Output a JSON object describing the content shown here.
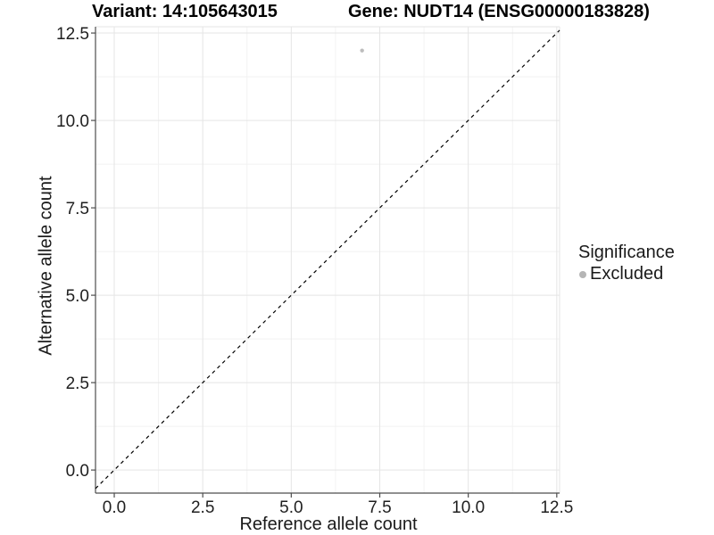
{
  "chart_data": {
    "type": "scatter",
    "title_left": "Variant: 14:105643015",
    "title_right": "Gene: NUDT14 (ENSG00000183828)",
    "xlabel": "Reference allele count",
    "ylabel": "Alternative allele count",
    "x_ticks": [
      "0.0",
      "2.5",
      "5.0",
      "7.5",
      "10.0",
      "12.5"
    ],
    "x_tick_values": [
      0,
      2.5,
      5,
      7.5,
      10,
      12.5
    ],
    "y_ticks": [
      "0.0",
      "2.5",
      "5.0",
      "7.5",
      "10.0",
      "12.5"
    ],
    "y_tick_values": [
      0,
      2.5,
      5,
      7.5,
      10,
      12.5
    ],
    "xlim": [
      -0.53,
      12.58
    ],
    "ylim": [
      -0.66,
      12.68
    ],
    "grid": true,
    "series": [
      {
        "name": "Excluded",
        "color": "#bdbdbd",
        "points": [
          {
            "x": 7,
            "y": 12
          }
        ]
      }
    ],
    "reference_line": {
      "slope": 1,
      "intercept": 0,
      "style": "dashed",
      "color": "#000000"
    },
    "legend": {
      "title": "Significance",
      "position": "right",
      "entries": [
        {
          "label": "Excluded",
          "color": "#b5b5b5"
        }
      ]
    },
    "colors": {
      "grid_major": "#e5e5e5",
      "grid_minor": "#f2f2f2",
      "panel_border": "#e5e5e5",
      "axis_line": "#4d4d4d",
      "tick_label": "#1f1f1f",
      "background": "#ffffff"
    }
  }
}
